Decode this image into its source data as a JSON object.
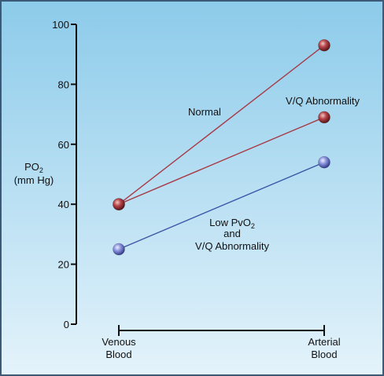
{
  "chart_data": {
    "type": "line",
    "ylabel_line1": "PO",
    "ylabel_sub": "2",
    "ylabel_line2": "(mm Hg)",
    "ylim": [
      0,
      100
    ],
    "yticks": [
      "0",
      "20",
      "40",
      "60",
      "80",
      "100"
    ],
    "categories": [
      {
        "line1": "Venous",
        "line2": "Blood"
      },
      {
        "line1": "Arterial",
        "line2": "Blood"
      }
    ],
    "series": [
      {
        "values": [
          40,
          93
        ],
        "color": "#a83a46",
        "point_color": "#b5464a",
        "label_lines": [
          "Normal"
        ]
      },
      {
        "values": [
          40,
          69
        ],
        "color": "#a83a46",
        "point_color": "#b5464a",
        "label_lines": [
          "V/Q Abnormality"
        ]
      },
      {
        "values": [
          25,
          54
        ],
        "color": "#3b57a8",
        "point_color": "#8a93dd",
        "label_lines": [
          "Low PvO",
          "and",
          "V/Q Abnormality"
        ],
        "label_sub": "2"
      }
    ],
    "colors": {
      "background_top": "#8ccbea",
      "background_bottom": "#e4f3fb",
      "border": "#3c5a78",
      "axis": "#111111"
    }
  }
}
